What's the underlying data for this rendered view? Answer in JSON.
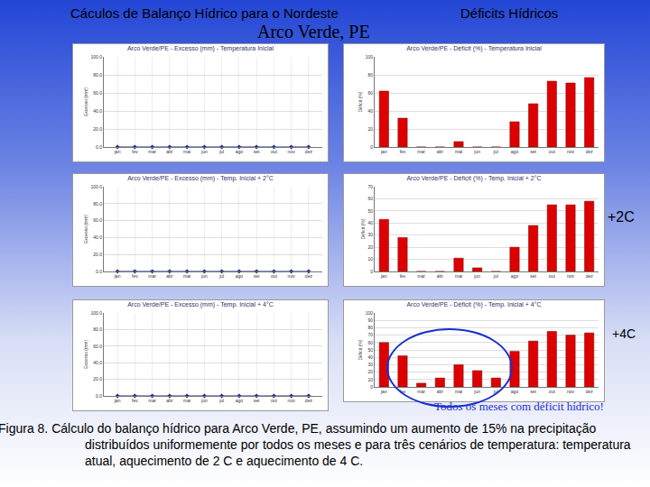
{
  "slide": {
    "title": "Cáculos de Balanço Hídrico para o Nordeste",
    "section": "Déficits Hídricos",
    "subtitle": "Arco Verde, PE",
    "scenario_labels": [
      "+2C",
      "+4C"
    ],
    "note": "Todos os meses com déficit hídrico!",
    "caption": "Figura 8. Cálculo do balanço hídrico para Arco Verde, PE, assumindo um aumento de 15% na precipitação distribuídos uniformemente por todos os meses e para três cenários de temperatura: temperatura atual, aquecimento de 2 C e aquecimento de 4 C."
  },
  "chart_data": [
    {
      "type": "line",
      "title": "Arco Verde/PE - Excesso (mm) - Temperatura Inicial",
      "y_label": "Excesso (mm)",
      "categories": [
        "jan",
        "fev",
        "mar",
        "abr",
        "mai",
        "jun",
        "jul",
        "ago",
        "set",
        "out",
        "nov",
        "dez"
      ],
      "values": [
        0,
        0,
        0,
        0,
        0,
        0,
        0,
        0,
        0,
        0,
        0,
        0
      ],
      "color": "#1f2a8a",
      "marker": "diamond",
      "ylim": [
        0,
        100
      ],
      "yticks": [
        {
          "value": 0,
          "label": "0.0"
        },
        {
          "value": 20,
          "label": "20.0"
        },
        {
          "value": 40,
          "label": "40.0"
        },
        {
          "value": 60,
          "label": "60.0"
        },
        {
          "value": 80,
          "label": "80.0"
        },
        {
          "value": 100,
          "label": "100.0"
        }
      ],
      "grid": true
    },
    {
      "type": "bar",
      "title": "Arco Verde/PE - Déficit (%) - Temperatura Inicial",
      "y_label": "Déficit (%)",
      "categories": [
        "jan",
        "fev",
        "mar",
        "abr",
        "mai",
        "jun",
        "jul",
        "ago",
        "set",
        "out",
        "nov",
        "dez"
      ],
      "values": [
        62,
        32,
        0,
        0,
        6,
        0,
        0,
        28,
        48,
        73,
        71,
        77
      ],
      "color": "#dd0000",
      "ylim": [
        0,
        100
      ],
      "yticks": [
        0,
        20,
        40,
        60,
        80,
        100
      ],
      "grid": true
    },
    {
      "type": "line",
      "title": "Arco Verde/PE - Excesso (mm) - Temp. Inicial + 2°C",
      "y_label": "Excesso (mm)",
      "categories": [
        "jan",
        "fev",
        "mar",
        "abr",
        "mai",
        "jun",
        "jul",
        "ago",
        "set",
        "out",
        "nov",
        "dez"
      ],
      "values": [
        0,
        0,
        0,
        0,
        0,
        0,
        0,
        0,
        0,
        0,
        0,
        0
      ],
      "color": "#1f2a8a",
      "marker": "diamond",
      "ylim": [
        0,
        100
      ],
      "yticks": [
        {
          "value": 0,
          "label": "0.0"
        },
        {
          "value": 20,
          "label": "20.0"
        },
        {
          "value": 40,
          "label": "40.0"
        },
        {
          "value": 60,
          "label": "60.0"
        },
        {
          "value": 80,
          "label": "80.0"
        },
        {
          "value": 100,
          "label": "100.0"
        }
      ],
      "grid": true
    },
    {
      "type": "bar",
      "title": "Arco Verde/PE - Déficit (%) - Temp. Inicial + 2°C",
      "y_label": "Déficit (%)",
      "categories": [
        "jan",
        "fev",
        "mar",
        "abr",
        "mai",
        "jun",
        "jul",
        "ago",
        "set",
        "out",
        "nov",
        "dez"
      ],
      "values": [
        43,
        28,
        0,
        0,
        11,
        3,
        0,
        20,
        38,
        55,
        55,
        58
      ],
      "color": "#dd0000",
      "ylim": [
        0,
        70
      ],
      "yticks": [
        0,
        10,
        20,
        30,
        40,
        50,
        60,
        70
      ],
      "grid": true
    },
    {
      "type": "line",
      "title": "Arco Verde/PE - Excesso (mm) - Temp. Inicial + 4°C",
      "y_label": "Excesso (mm)",
      "categories": [
        "jan",
        "fev",
        "mar",
        "abr",
        "mai",
        "jun",
        "jul",
        "ago",
        "set",
        "out",
        "nov",
        "dez"
      ],
      "values": [
        0,
        0,
        0,
        0,
        0,
        0,
        0,
        0,
        0,
        0,
        0,
        0
      ],
      "color": "#1f2a8a",
      "marker": "diamond",
      "ylim": [
        0,
        100
      ],
      "yticks": [
        {
          "value": 0,
          "label": "0.0"
        },
        {
          "value": 20,
          "label": "20.0"
        },
        {
          "value": 40,
          "label": "40.0"
        },
        {
          "value": 60,
          "label": "60.0"
        },
        {
          "value": 80,
          "label": "80.0"
        },
        {
          "value": 100,
          "label": "100.0"
        }
      ],
      "grid": true
    },
    {
      "type": "bar",
      "title": "Arco Verde/PE - Déficit (%) - Temp. Inicial + 4°C",
      "y_label": "Déficit (%)",
      "categories": [
        "jan",
        "fev",
        "mar",
        "abr",
        "mai",
        "jun",
        "jul",
        "ago",
        "set",
        "out",
        "nov",
        "dez"
      ],
      "values": [
        60,
        42,
        5,
        12,
        30,
        22,
        12,
        48,
        62,
        75,
        70,
        73
      ],
      "color": "#dd0000",
      "ylim": [
        0,
        100
      ],
      "yticks": [
        0,
        10,
        20,
        30,
        40,
        50,
        60,
        70,
        80,
        90,
        100
      ],
      "grid": true
    }
  ]
}
